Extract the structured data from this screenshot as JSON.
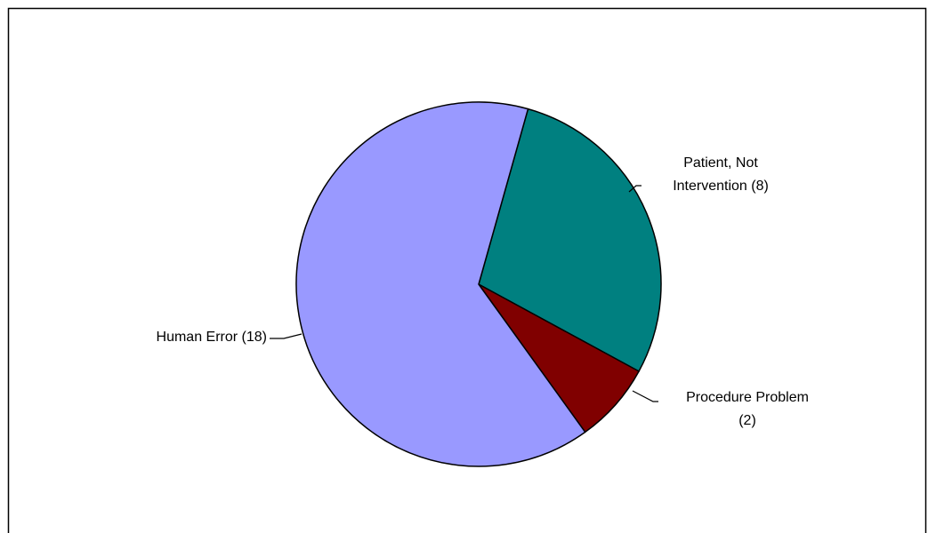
{
  "chart_data": {
    "type": "pie",
    "title": "",
    "slices": [
      {
        "label": "Patient, Not Intervention (8)",
        "label_lines": [
          "Patient, Not",
          "Intervention (8)"
        ],
        "value": 8,
        "color": "#008080"
      },
      {
        "label": "Procedure Problem (2)",
        "label_lines": [
          "Procedure Problem",
          "(2)"
        ],
        "value": 2,
        "color": "#800000"
      },
      {
        "label": "Human Error (18)",
        "label_lines": [
          "Human Error (18)"
        ],
        "value": 18,
        "color": "#9999FF"
      }
    ],
    "legend": "none",
    "data_labels": "category name with count, outside with leader lines"
  }
}
